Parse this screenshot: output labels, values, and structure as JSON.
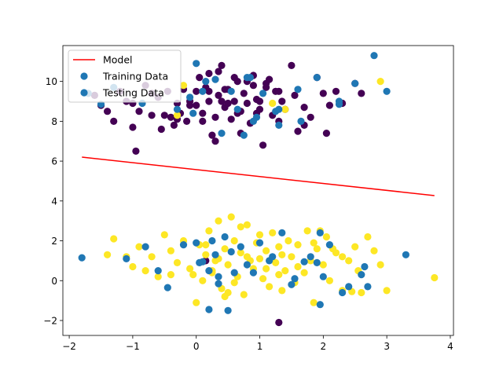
{
  "chart_data": {
    "type": "scatter",
    "title": "",
    "xlabel": "",
    "ylabel": "",
    "xlim": [
      -2.1,
      4.05
    ],
    "ylim": [
      -2.75,
      11.8
    ],
    "xticks": [
      -2,
      -1,
      0,
      1,
      2,
      3,
      4
    ],
    "yticks": [
      -2,
      0,
      2,
      4,
      6,
      8,
      10
    ],
    "grid": false,
    "legend_position": "upper-left",
    "legend": [
      "Model",
      "Training Data",
      "Testing Data"
    ],
    "colors": {
      "model": "#ff0000",
      "class_0": "#440154",
      "class_1": "#fde725",
      "testing": "#1f77b4",
      "legend_training_marker": "#1f77b4",
      "legend_testing_marker": "#1f77b4"
    },
    "model_line": {
      "x": [
        -1.8,
        3.75
      ],
      "y": [
        6.2,
        4.27
      ]
    },
    "training_class0": [
      [
        -1.6,
        9.3
      ],
      [
        -1.5,
        8.8
      ],
      [
        -1.4,
        8.5
      ],
      [
        -1.3,
        8.0
      ],
      [
        -1.2,
        9.5
      ],
      [
        -1.1,
        9.0
      ],
      [
        -1.0,
        7.7
      ],
      [
        -0.95,
        6.5
      ],
      [
        -0.9,
        8.5
      ],
      [
        -0.8,
        9.8
      ],
      [
        -0.7,
        8.3
      ],
      [
        -0.6,
        9.2
      ],
      [
        -0.55,
        7.6
      ],
      [
        -0.5,
        8.3
      ],
      [
        -0.45,
        9.5
      ],
      [
        -0.4,
        8.2
      ],
      [
        -0.35,
        7.8
      ],
      [
        -0.3,
        8.9
      ],
      [
        -0.25,
        8.4
      ],
      [
        -0.2,
        9.6
      ],
      [
        -0.15,
        8.0
      ],
      [
        -0.1,
        9.0
      ],
      [
        0.0,
        8.8
      ],
      [
        0.05,
        10.2
      ],
      [
        0.1,
        8.4
      ],
      [
        0.15,
        9.7
      ],
      [
        0.2,
        10.4
      ],
      [
        0.25,
        7.3
      ],
      [
        0.3,
        8.2
      ],
      [
        0.35,
        9.3
      ],
      [
        0.4,
        10.8
      ],
      [
        0.45,
        8.7
      ],
      [
        0.5,
        9.6
      ],
      [
        0.55,
        8.1
      ],
      [
        0.6,
        9.0
      ],
      [
        0.65,
        10.0
      ],
      [
        0.7,
        8.5
      ],
      [
        0.75,
        9.4
      ],
      [
        0.8,
        8.9
      ],
      [
        0.85,
        7.9
      ],
      [
        0.9,
        10.3
      ],
      [
        0.95,
        9.1
      ],
      [
        1.0,
        8.6
      ],
      [
        1.05,
        6.8
      ],
      [
        1.1,
        9.9
      ],
      [
        1.15,
        10.1
      ],
      [
        1.2,
        8.3
      ],
      [
        1.25,
        9.5
      ],
      [
        1.3,
        8.0
      ],
      [
        1.35,
        9.0
      ],
      [
        1.4,
        8.6
      ],
      [
        1.5,
        10.8
      ],
      [
        1.55,
        9.3
      ],
      [
        1.6,
        7.5
      ],
      [
        1.7,
        8.7
      ],
      [
        1.8,
        8.2
      ],
      [
        1.9,
        10.2
      ],
      [
        2.0,
        9.4
      ],
      [
        2.05,
        7.4
      ],
      [
        2.1,
        8.8
      ],
      [
        2.2,
        9.5
      ],
      [
        2.3,
        8.9
      ],
      [
        2.5,
        9.9
      ],
      [
        2.6,
        9.4
      ],
      [
        0.3,
        7.0
      ],
      [
        0.7,
        7.4
      ],
      [
        0.1,
        8.0
      ],
      [
        0.2,
        9.0
      ],
      [
        0.4,
        9.0
      ],
      [
        0.5,
        8.9
      ],
      [
        0.6,
        10.2
      ],
      [
        1.0,
        9.0
      ],
      [
        0.8,
        10.0
      ],
      [
        -0.1,
        8.8
      ],
      [
        1.3,
        9.5
      ],
      [
        0.35,
        10.5
      ],
      [
        -0.3,
        8.1
      ],
      [
        0.15,
        1.0
      ],
      [
        -1.0,
        8.9
      ],
      [
        -0.7,
        9.4
      ],
      [
        0.9,
        9.8
      ],
      [
        0.2,
        9.5
      ],
      [
        0.65,
        8.4
      ],
      [
        1.1,
        9.7
      ],
      [
        0.45,
        9.6
      ],
      [
        1.7,
        7.8
      ],
      [
        0.0,
        9.5
      ],
      [
        1.3,
        -2.1
      ],
      [
        0.95,
        8.4
      ]
    ],
    "training_class1": [
      [
        -1.4,
        1.3
      ],
      [
        -1.3,
        2.1
      ],
      [
        -1.1,
        1.2
      ],
      [
        -1.0,
        0.7
      ],
      [
        -0.9,
        1.7
      ],
      [
        -0.8,
        0.5
      ],
      [
        -0.7,
        1.2
      ],
      [
        -0.6,
        0.2
      ],
      [
        -0.5,
        2.3
      ],
      [
        -0.4,
        1.5
      ],
      [
        -0.3,
        0.9
      ],
      [
        -0.2,
        2.0
      ],
      [
        -0.1,
        0.6
      ],
      [
        0.0,
        -1.1
      ],
      [
        0.05,
        1.8
      ],
      [
        0.1,
        0.0
      ],
      [
        0.15,
        1.3
      ],
      [
        0.2,
        2.5
      ],
      [
        0.25,
        0.4
      ],
      [
        0.3,
        1.0
      ],
      [
        0.35,
        3.0
      ],
      [
        0.4,
        -0.4
      ],
      [
        0.45,
        1.6
      ],
      [
        0.5,
        0.8
      ],
      [
        0.55,
        3.2
      ],
      [
        0.6,
        2.0
      ],
      [
        0.65,
        0.2
      ],
      [
        0.7,
        1.4
      ],
      [
        0.75,
        -0.7
      ],
      [
        0.8,
        2.8
      ],
      [
        0.85,
        1.0
      ],
      [
        0.9,
        0.6
      ],
      [
        0.95,
        1.9
      ],
      [
        1.0,
        2.3
      ],
      [
        1.05,
        0.1
      ],
      [
        1.1,
        1.5
      ],
      [
        1.15,
        -0.3
      ],
      [
        1.2,
        2.4
      ],
      [
        1.25,
        0.9
      ],
      [
        1.3,
        1.7
      ],
      [
        1.35,
        -0.5
      ],
      [
        1.4,
        0.5
      ],
      [
        1.45,
        2.0
      ],
      [
        1.5,
        1.2
      ],
      [
        1.55,
        -0.1
      ],
      [
        1.6,
        1.8
      ],
      [
        1.7,
        0.4
      ],
      [
        1.75,
        2.5
      ],
      [
        1.8,
        1.0
      ],
      [
        1.85,
        -1.1
      ],
      [
        1.9,
        1.6
      ],
      [
        2.0,
        0.8
      ],
      [
        2.05,
        2.2
      ],
      [
        2.1,
        0.0
      ],
      [
        2.2,
        1.4
      ],
      [
        2.3,
        -0.5
      ],
      [
        2.4,
        1.0
      ],
      [
        2.5,
        1.7
      ],
      [
        2.6,
        -0.6
      ],
      [
        2.7,
        2.2
      ],
      [
        2.8,
        1.5
      ],
      [
        2.9,
        0.8
      ],
      [
        3.0,
        -0.5
      ],
      [
        3.75,
        0.15
      ],
      [
        2.9,
        10.0
      ],
      [
        1.4,
        8.6
      ],
      [
        1.2,
        8.9
      ],
      [
        -0.2,
        9.8
      ],
      [
        -0.3,
        8.3
      ],
      [
        0.5,
        -0.6
      ],
      [
        0.25,
        0.5
      ],
      [
        0.6,
        -0.1
      ],
      [
        -0.05,
        0.3
      ],
      [
        1.0,
        1.1
      ],
      [
        1.3,
        0.3
      ],
      [
        0.45,
        -0.8
      ],
      [
        0.8,
        1.2
      ],
      [
        1.6,
        0.7
      ],
      [
        2.3,
        1.2
      ],
      [
        1.95,
        2.5
      ],
      [
        0.7,
        2.7
      ],
      [
        2.55,
        0.5
      ],
      [
        1.35,
        1.3
      ],
      [
        2.45,
        -0.55
      ],
      [
        0.15,
        1.8
      ],
      [
        -0.4,
        0.3
      ],
      [
        1.1,
        0.6
      ],
      [
        2.15,
        1.6
      ],
      [
        0.35,
        1.1
      ],
      [
        1.85,
        1.9
      ]
    ],
    "testing": [
      [
        -1.8,
        1.15
      ],
      [
        -1.7,
        9.4
      ],
      [
        -1.5,
        8.85
      ],
      [
        -1.3,
        9.7
      ],
      [
        -1.1,
        1.1
      ],
      [
        -0.8,
        1.7
      ],
      [
        -0.6,
        0.5
      ],
      [
        -0.45,
        -0.35
      ],
      [
        -0.3,
        8.6
      ],
      [
        -0.2,
        1.8
      ],
      [
        -0.1,
        9.2
      ],
      [
        0.0,
        10.9
      ],
      [
        0.0,
        1.9
      ],
      [
        0.1,
        9.5
      ],
      [
        0.15,
        10.0
      ],
      [
        0.2,
        -1.45
      ],
      [
        0.25,
        2.0
      ],
      [
        0.3,
        10.1
      ],
      [
        0.3,
        1.3
      ],
      [
        0.35,
        0.2
      ],
      [
        0.4,
        7.4
      ],
      [
        0.45,
        2.2
      ],
      [
        0.5,
        -1.5
      ],
      [
        0.55,
        9.5
      ],
      [
        0.6,
        0.4
      ],
      [
        0.65,
        8.6
      ],
      [
        0.7,
        1.7
      ],
      [
        0.75,
        7.3
      ],
      [
        0.8,
        0.8
      ],
      [
        0.85,
        10.2
      ],
      [
        0.9,
        0.4
      ],
      [
        0.95,
        8.2
      ],
      [
        1.0,
        1.9
      ],
      [
        1.05,
        9.4
      ],
      [
        1.15,
        1.0
      ],
      [
        1.3,
        8.6
      ],
      [
        1.3,
        7.8
      ],
      [
        1.35,
        2.4
      ],
      [
        1.5,
        -0.2
      ],
      [
        1.55,
        0.1
      ],
      [
        1.65,
        8.0
      ],
      [
        1.8,
        1.2
      ],
      [
        1.9,
        10.2
      ],
      [
        1.95,
        -1.2
      ],
      [
        2.0,
        0.2
      ],
      [
        2.1,
        1.8
      ],
      [
        2.25,
        9.0
      ],
      [
        2.3,
        -0.6
      ],
      [
        2.4,
        -0.3
      ],
      [
        2.5,
        9.9
      ],
      [
        2.6,
        0.3
      ],
      [
        2.65,
        0.7
      ],
      [
        2.7,
        -0.3
      ],
      [
        2.8,
        11.3
      ],
      [
        3.0,
        9.5
      ],
      [
        3.3,
        1.3
      ],
      [
        1.9,
        0.9
      ],
      [
        0.2,
        0.5
      ],
      [
        0.05,
        0.9
      ],
      [
        1.6,
        9.6
      ],
      [
        0.8,
        10.2
      ],
      [
        1.25,
        8.5
      ],
      [
        0.9,
        8.0
      ],
      [
        -0.05,
        8.4
      ],
      [
        0.1,
        0.95
      ],
      [
        1.2,
        1.2
      ],
      [
        -0.85,
        8.9
      ],
      [
        0.35,
        -0.15
      ],
      [
        1.95,
        2.4
      ],
      [
        2.25,
        8.85
      ],
      [
        0.55,
        1.45
      ],
      [
        1.7,
        0.95
      ]
    ]
  }
}
